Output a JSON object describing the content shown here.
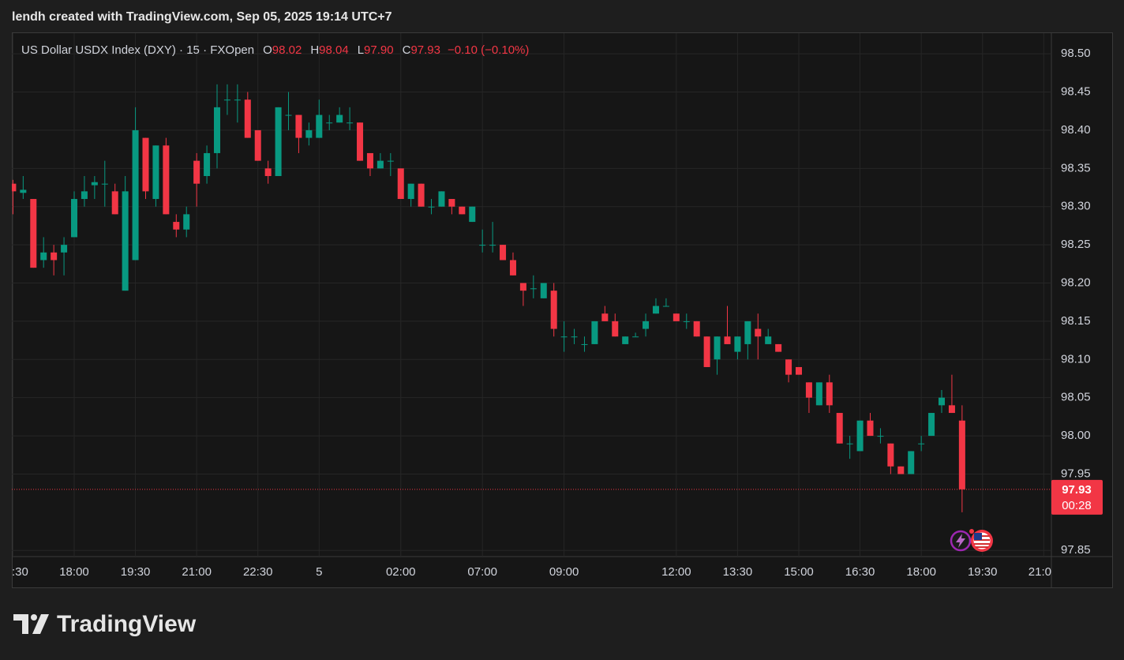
{
  "header": {
    "caption": "lendh created with TradingView.com, Sep 05, 2025 19:14 UTC+7"
  },
  "chart_data": {
    "type": "candlestick",
    "title": "US Dollar USDX Index (DXY) · 15 · FXOpen",
    "legend": {
      "o_label": "O",
      "open": "98.02",
      "h_label": "H",
      "high": "98.04",
      "l_label": "L",
      "low": "97.90",
      "c_label": "C",
      "close": "97.93",
      "change": "−0.10 (−0.10%)"
    },
    "up_color": "#089981",
    "down_color": "#f23645",
    "open": [
      98.33,
      98.318,
      98.31,
      98.23,
      98.24,
      98.24,
      98.26,
      98.31,
      98.328,
      98.33,
      98.32,
      98.19,
      98.23,
      98.39,
      98.31,
      98.38,
      98.28,
      98.27,
      98.36,
      98.34,
      98.37,
      98.44,
      98.44,
      98.44,
      98.4,
      98.35,
      98.34,
      98.42,
      98.42,
      98.39,
      98.39,
      98.41,
      98.41,
      98.41,
      98.41,
      98.37,
      98.35,
      98.36,
      98.35,
      98.31,
      98.33,
      98.3,
      98.3,
      98.31,
      98.3,
      98.28,
      98.25,
      98.25,
      98.25,
      98.23,
      98.2,
      98.193,
      98.18,
      98.19,
      98.13,
      98.13,
      98.12,
      98.12,
      98.16,
      98.15,
      98.12,
      98.13,
      98.14,
      98.16,
      98.17,
      98.16,
      98.15,
      98.15,
      98.13,
      98.1,
      98.13,
      98.11,
      98.12,
      98.14,
      98.12,
      98.12,
      98.1,
      98.09,
      98.07,
      98.04,
      98.07,
      98.03,
      97.99,
      97.98,
      98.02,
      98.0,
      97.99,
      97.96,
      97.95,
      97.99,
      98.0,
      98.04,
      98.04,
      98.02
    ],
    "high": [
      98.335,
      98.34,
      98.31,
      98.26,
      98.25,
      98.26,
      98.32,
      98.34,
      98.34,
      98.36,
      98.33,
      98.34,
      98.43,
      98.39,
      98.38,
      98.39,
      98.29,
      98.3,
      98.37,
      98.38,
      98.46,
      98.46,
      98.46,
      98.45,
      98.4,
      98.36,
      98.43,
      98.45,
      98.42,
      98.41,
      98.44,
      98.42,
      98.43,
      98.43,
      98.41,
      98.37,
      98.37,
      98.37,
      98.35,
      98.33,
      98.33,
      98.31,
      98.32,
      98.31,
      98.3,
      98.3,
      98.27,
      98.28,
      98.25,
      98.24,
      98.2,
      98.21,
      98.2,
      98.2,
      98.15,
      98.14,
      98.13,
      98.15,
      98.17,
      98.16,
      98.13,
      98.135,
      98.16,
      98.18,
      98.18,
      98.16,
      98.16,
      98.15,
      98.13,
      98.13,
      98.17,
      98.13,
      98.15,
      98.16,
      98.14,
      98.12,
      98.1,
      98.09,
      98.07,
      98.07,
      98.08,
      98.03,
      98.0,
      98.02,
      98.03,
      98.01,
      97.99,
      97.96,
      97.98,
      98.0,
      98.03,
      98.06,
      98.08,
      98.04
    ],
    "low": [
      98.29,
      98.31,
      98.22,
      98.22,
      98.21,
      98.21,
      98.26,
      98.3,
      98.31,
      98.3,
      98.29,
      98.19,
      98.23,
      98.31,
      98.3,
      98.29,
      98.26,
      98.26,
      98.3,
      98.33,
      98.35,
      98.42,
      98.41,
      98.39,
      98.36,
      98.33,
      98.34,
      98.4,
      98.37,
      98.38,
      98.39,
      98.4,
      98.41,
      98.4,
      98.36,
      98.34,
      98.35,
      98.34,
      98.31,
      98.3,
      98.3,
      98.29,
      98.3,
      98.29,
      98.29,
      98.28,
      98.24,
      98.24,
      98.23,
      98.21,
      98.17,
      98.18,
      98.18,
      98.13,
      98.11,
      98.12,
      98.11,
      98.12,
      98.15,
      98.13,
      98.12,
      98.13,
      98.13,
      98.16,
      98.17,
      98.15,
      98.14,
      98.13,
      98.09,
      98.08,
      98.12,
      98.1,
      98.1,
      98.1,
      98.12,
      98.11,
      98.07,
      98.08,
      98.03,
      98.04,
      98.03,
      97.99,
      97.97,
      97.98,
      98.0,
      97.99,
      97.95,
      97.95,
      97.95,
      97.98,
      98.0,
      98.03,
      98.03,
      97.9
    ],
    "close": [
      98.32,
      98.322,
      98.22,
      98.24,
      98.23,
      98.25,
      98.31,
      98.32,
      98.332,
      98.33,
      98.29,
      98.32,
      98.4,
      98.32,
      98.38,
      98.29,
      98.27,
      98.29,
      98.33,
      98.37,
      98.43,
      98.44,
      98.44,
      98.39,
      98.36,
      98.34,
      98.43,
      98.42,
      98.39,
      98.4,
      98.42,
      98.41,
      98.42,
      98.41,
      98.36,
      98.35,
      98.36,
      98.36,
      98.31,
      98.33,
      98.3,
      98.3,
      98.32,
      98.3,
      98.29,
      98.3,
      98.25,
      98.25,
      98.23,
      98.21,
      98.19,
      98.193,
      98.2,
      98.14,
      98.13,
      98.13,
      98.12,
      98.15,
      98.15,
      98.13,
      98.13,
      98.13,
      98.15,
      98.17,
      98.17,
      98.15,
      98.15,
      98.13,
      98.09,
      98.13,
      98.12,
      98.13,
      98.15,
      98.13,
      98.13,
      98.11,
      98.08,
      98.08,
      98.05,
      98.07,
      98.04,
      97.99,
      97.99,
      98.02,
      98.0,
      98.0,
      97.96,
      97.95,
      97.98,
      97.99,
      98.03,
      98.05,
      98.03,
      97.93
    ],
    "xlim": [
      -0.11,
      101.75
    ],
    "xticks": [
      {
        "value": 0,
        "label": ":30"
      },
      {
        "value": 6,
        "label": "18:00"
      },
      {
        "value": 12,
        "label": "19:30"
      },
      {
        "value": 18,
        "label": "21:00"
      },
      {
        "value": 24,
        "label": "22:30"
      },
      {
        "value": 30,
        "label": "5"
      },
      {
        "value": 38,
        "label": "02:00"
      },
      {
        "value": 46,
        "label": "07:00"
      },
      {
        "value": 54,
        "label": "09:00"
      },
      {
        "value": 65,
        "label": "12:00"
      },
      {
        "value": 71,
        "label": "13:30"
      },
      {
        "value": 77,
        "label": "15:00"
      },
      {
        "value": 83,
        "label": "16:30"
      },
      {
        "value": 89,
        "label": "18:00"
      },
      {
        "value": 95,
        "label": "19:30"
      },
      {
        "value": 101,
        "label": "21:0"
      }
    ],
    "ylim": [
      97.842,
      98.527
    ],
    "yticks": [
      97.85,
      97.95,
      {
        "value": 98,
        "label": "98.00"
      },
      98.05,
      {
        "value": 98.1,
        "label": "98.10"
      },
      98.15,
      {
        "value": 98.2,
        "label": "98.20"
      },
      98.25,
      {
        "value": 98.3,
        "label": "98.30"
      },
      98.35,
      {
        "value": 98.4,
        "label": "98.40"
      },
      98.45,
      {
        "value": 98.5,
        "label": "98.50"
      }
    ],
    "grid": true,
    "last_price": {
      "value": 97.93,
      "countdown": "00:28"
    }
  },
  "footer": {
    "brand": "TradingView"
  }
}
